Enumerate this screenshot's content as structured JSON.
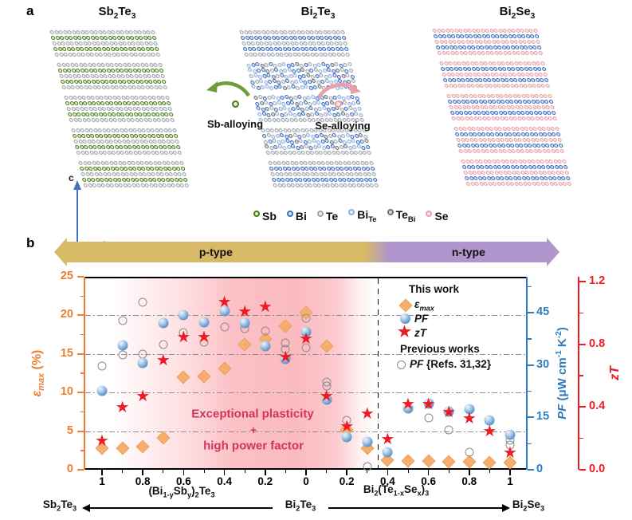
{
  "panel_a": {
    "label": "a",
    "structures": [
      {
        "id": "sb2te3",
        "title": "Sb<sub>2</sub>Te<sub>3</sub>",
        "pattern": [
          "te",
          "sb",
          "te",
          "sb",
          "te"
        ],
        "disorder": false
      },
      {
        "id": "bi2te3",
        "title": "Bi<sub>2</sub>Te<sub>3</sub>",
        "pattern": [
          "te",
          "bi",
          "te",
          "bi",
          "te"
        ],
        "disorder": true
      },
      {
        "id": "bi2se3",
        "title": "Bi<sub>2</sub>Se<sub>3</sub>",
        "pattern": [
          "se",
          "bi",
          "se",
          "bi",
          "se"
        ],
        "disorder": false
      }
    ],
    "disorder_rows": [
      5,
      6,
      7,
      8,
      9,
      10,
      11,
      12,
      13,
      16,
      17,
      18
    ],
    "disorder_mix": [
      "bi",
      "biTe",
      "teBi",
      "te",
      "bi",
      "te",
      "biTe",
      "bi"
    ],
    "atoms": {
      "sb": {
        "ring": "#4a7a1c",
        "fill": "#e4f0cf"
      },
      "bi": {
        "ring": "#3b6cc0",
        "fill": "#d9e6f8"
      },
      "te": {
        "ring": "#9fa3aa",
        "fill": "#eef0f2"
      },
      "biTe": {
        "ring": "#8fb0e0",
        "fill": "#e6eef9"
      },
      "teBi": {
        "ring": "#6d7077",
        "fill": "#d9dbde"
      },
      "se": {
        "ring": "#e8a2ac",
        "fill": "#fbe7ea"
      }
    },
    "atom_legend": [
      {
        "atom": "sb",
        "label": "Sb"
      },
      {
        "atom": "bi",
        "label": "Bi"
      },
      {
        "atom": "te",
        "label": "Te"
      },
      {
        "atom": "biTe",
        "label": "Bi<sub>Te</sub>"
      },
      {
        "atom": "teBi",
        "label": "Te<sub>Bi</sub>"
      },
      {
        "atom": "se",
        "label": "Se"
      }
    ],
    "alloy_left": {
      "label": "Sb-alloying",
      "color": "#6f9c3a"
    },
    "alloy_right": {
      "label": "Se-alloying",
      "color": "#e9a0ab"
    },
    "crystal_axes": {
      "vertical": "c",
      "horizontal": "a",
      "color": "#4472c4"
    }
  },
  "panel_b": {
    "label": "b",
    "banner": {
      "p_label": "p-type",
      "n_label": "n-type",
      "p_color": "#d8b966",
      "n_color": "#b095cf"
    },
    "annotation": {
      "line1": "Exceptional plasticity",
      "plus": "+",
      "line2": "high power factor",
      "color": "#d23557"
    },
    "legend": {
      "this_work": "This work",
      "eps": "ε<sub>max</sub>",
      "pf": "PF",
      "zt": "zT",
      "previous": "Previous works",
      "prev_pf_sym": "PF",
      "prev_pf_rest": " {Refs. 31,32}"
    },
    "axis_titles": {
      "left_sym": "ε<sub>max</sub>",
      "left_unit": " (%)",
      "right_pf_sym": "PF",
      "right_pf_unit": " (μW cm<sup>-1</sup> K<sup>-2</sup>)",
      "right_zt": "zT"
    },
    "bottom_labels": {
      "left_end": "Sb<sub>2</sub>Te<sub>3</sub>",
      "left_formula": "(Bi<sub>1-y</sub>Sb<sub>y</sub>)<sub>2</sub>Te<sub>3</sub>",
      "center": "Bi<sub>2</sub>Te<sub>3</sub>",
      "right_formula": "Bi<sub>2</sub>(Te<sub>1-x</sub>Se<sub>x</sub>)<sub>3</sub>",
      "right_end": "Bi<sub>2</sub>Se<sub>3</sub>"
    },
    "colors": {
      "eps_axis": "#ee7d30",
      "pf_axis": "#2e7bbf",
      "zt_axis": "#ec1c24",
      "diamond": "#f5ae6e",
      "diamond_edge": "#eda05b",
      "star": "#ec1c24",
      "prev_circle": "#8c8c8c"
    }
  },
  "chart_data": {
    "type": "scatter",
    "x_convention": "negative x = Sb fraction y in (Bi1-ySby)2Te3 (p-type side), 0 = Bi2Te3, positive x = Se fraction x in Bi2(Te1-xSex)3 (n-type side)",
    "x_tick_values": [
      -1,
      -0.8,
      -0.6,
      -0.4,
      -0.2,
      0,
      0.2,
      0.4,
      0.6,
      0.8,
      1
    ],
    "x_tick_labels": [
      "1",
      "0.8",
      "0.6",
      "0.4",
      "0.2",
      "0",
      "0.2",
      "0.4",
      "0.6",
      "0.8",
      "1"
    ],
    "x_minor_step": 0.1,
    "axes": {
      "eps": {
        "label": "εmax (%)",
        "min": 0,
        "max": 25,
        "ticks": [
          0,
          5,
          10,
          15,
          20,
          25
        ],
        "tick_labels": [
          "0",
          "5",
          "10",
          "15",
          "20",
          "25"
        ],
        "minor_step": 2.5
      },
      "pf": {
        "label": "PF (μW cm-1 K-2)",
        "min": 0,
        "max": 55.3,
        "ticks": [
          0,
          15,
          30,
          45
        ],
        "tick_labels": [
          "0",
          "15",
          "30",
          "45"
        ],
        "minor_step": 7.5
      },
      "zt": {
        "label": "zT",
        "min": 0,
        "max": 1.23,
        "ticks": [
          0,
          0.4,
          0.8,
          1.2
        ],
        "tick_labels": [
          "0.0",
          "0.4",
          "0.8",
          "1.2"
        ],
        "minor_step": 0.2
      }
    },
    "gridlines_eps": [
      5,
      10,
      15,
      20
    ],
    "pn_divider_x": 0.35,
    "series": [
      {
        "name": "eps_max",
        "marker": "diamond",
        "axis": "eps",
        "points": [
          [
            -1,
            2.8
          ],
          [
            -0.9,
            2.8
          ],
          [
            -0.8,
            3.0
          ],
          [
            -0.7,
            4.1
          ],
          [
            -0.6,
            12.0
          ],
          [
            -0.5,
            12.1
          ],
          [
            -0.4,
            13.1
          ],
          [
            -0.3,
            16.2
          ],
          [
            -0.2,
            16.9
          ],
          [
            -0.1,
            18.6
          ],
          [
            0,
            20.4
          ],
          [
            0.1,
            16.0
          ],
          [
            0.2,
            5.2
          ],
          [
            0.3,
            2.8
          ],
          [
            0.4,
            1.2
          ],
          [
            0.5,
            1.1
          ],
          [
            0.6,
            1.1
          ],
          [
            0.7,
            1.0
          ],
          [
            0.8,
            1.0
          ],
          [
            0.9,
            0.9
          ],
          [
            1,
            0.9
          ]
        ]
      },
      {
        "name": "PF_this_work",
        "marker": "sphere",
        "axis": "pf",
        "points": [
          [
            -1,
            22.6
          ],
          [
            -0.9,
            35.6
          ],
          [
            -0.8,
            30.6
          ],
          [
            -0.7,
            42.0
          ],
          [
            -0.6,
            44.3
          ],
          [
            -0.5,
            42.2
          ],
          [
            -0.4,
            45.4
          ],
          [
            -0.3,
            42.0
          ],
          [
            -0.2,
            35.4
          ],
          [
            -0.1,
            31.7
          ],
          [
            0,
            39.5
          ],
          [
            0.1,
            20.1
          ],
          [
            0.2,
            9.4
          ],
          [
            0.3,
            8.0
          ],
          [
            0.4,
            5.0
          ],
          [
            0.5,
            17.5
          ],
          [
            0.6,
            19.0
          ],
          [
            0.7,
            16.7
          ],
          [
            0.8,
            17.4
          ],
          [
            0.9,
            14.2
          ],
          [
            1,
            10.0
          ]
        ]
      },
      {
        "name": "zT",
        "marker": "star",
        "axis": "zt",
        "points": [
          [
            -1,
            0.18
          ],
          [
            -0.9,
            0.39
          ],
          [
            -0.8,
            0.46
          ],
          [
            -0.7,
            0.69
          ],
          [
            -0.6,
            0.84
          ],
          [
            -0.5,
            0.84
          ],
          [
            -0.4,
            1.06
          ],
          [
            -0.3,
            1.0
          ],
          [
            -0.2,
            1.03
          ],
          [
            -0.1,
            0.71
          ],
          [
            0,
            0.83
          ],
          [
            0.1,
            0.46
          ],
          [
            0.2,
            0.27
          ],
          [
            0.3,
            0.35
          ],
          [
            0.4,
            0.19
          ],
          [
            0.5,
            0.41
          ],
          [
            0.6,
            0.41
          ],
          [
            0.7,
            0.36
          ],
          [
            0.8,
            0.32
          ],
          [
            0.9,
            0.24
          ],
          [
            1,
            0.1
          ]
        ]
      },
      {
        "name": "PF_previous_refs_31_32",
        "marker": "circle",
        "axis": "pf",
        "points": [
          [
            -1,
            29.7
          ],
          [
            -0.9,
            42.7
          ],
          [
            -0.9,
            32.9
          ],
          [
            -0.8,
            48.0
          ],
          [
            -0.8,
            33.1
          ],
          [
            -0.7,
            35.9
          ],
          [
            -0.6,
            39.3
          ],
          [
            -0.5,
            36.5
          ],
          [
            -0.4,
            40.9
          ],
          [
            -0.3,
            40.4
          ],
          [
            -0.2,
            39.7
          ],
          [
            -0.1,
            36.3
          ],
          [
            -0.1,
            34.5
          ],
          [
            0,
            43.5
          ],
          [
            0,
            35.0
          ],
          [
            0.1,
            25.1
          ],
          [
            0.1,
            23.9
          ],
          [
            0.2,
            14.2
          ],
          [
            0.3,
            1.0
          ],
          [
            0.6,
            14.8
          ],
          [
            0.7,
            11.4
          ],
          [
            0.8,
            5.0
          ],
          [
            1,
            8.5
          ],
          [
            1,
            7.0
          ]
        ]
      }
    ]
  }
}
